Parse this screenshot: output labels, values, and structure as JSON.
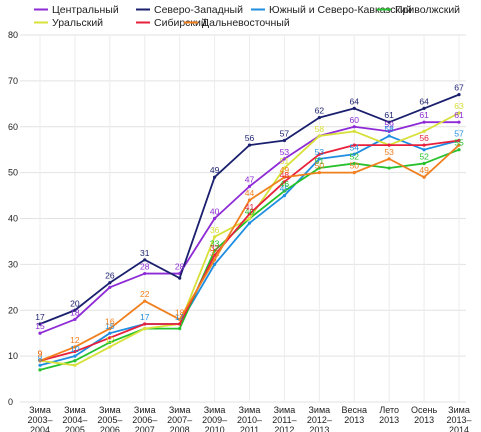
{
  "chart_data": {
    "type": "line",
    "x": [
      "Зима 2003–2004",
      "Зима 2004–2005",
      "Зима 2005–2006",
      "Зима 2006–2007",
      "Зима 2007–2008",
      "Зима 2009–2010",
      "Зима 2010–2011",
      "Зима 2011–2012",
      "Зима 2012–2013",
      "Весна 2013",
      "Лето 2013",
      "Осень 2013",
      "Зима 2013–2014"
    ],
    "x_ticks": [
      [
        "Зима",
        "2003–",
        "2004"
      ],
      [
        "Зима",
        "2004–",
        "2005"
      ],
      [
        "Зима",
        "2005–",
        "2006"
      ],
      [
        "Зима",
        "2006–",
        "2007"
      ],
      [
        "Зима",
        "2007–",
        "2008"
      ],
      [
        "Зима",
        "2009–",
        "2010"
      ],
      [
        "Зима",
        "2010–",
        "2011"
      ],
      [
        "Зима",
        "2011–",
        "2012"
      ],
      [
        "Зима",
        "2012–",
        "2013"
      ],
      [
        "Весна",
        "2013"
      ],
      [
        "Лето",
        "2013"
      ],
      [
        "Осень",
        "2013"
      ],
      [
        "Зима",
        "2013–",
        "2014"
      ]
    ],
    "ylim": [
      0,
      80
    ],
    "y_ticks": [
      0,
      10,
      20,
      30,
      40,
      50,
      60,
      70,
      80
    ],
    "grid": true,
    "legend_position": "top",
    "series": [
      {
        "name": "Центральный",
        "color": "#8e2bd6",
        "values": [
          15,
          18,
          25,
          28,
          28,
          40,
          47,
          53,
          58,
          60,
          59,
          61,
          61
        ],
        "labels": [
          true,
          true,
          false,
          true,
          true,
          true,
          true,
          true,
          false,
          true,
          true,
          true,
          true
        ]
      },
      {
        "name": "Северо-Западный",
        "color": "#1a1f6e",
        "values": [
          17,
          20,
          26,
          31,
          27,
          49,
          56,
          57,
          62,
          64,
          61,
          64,
          67
        ],
        "labels": [
          true,
          true,
          true,
          true,
          false,
          true,
          true,
          true,
          true,
          true,
          true,
          true,
          true
        ]
      },
      {
        "name": "Южный и Северо-Кавказский",
        "color": "#1f8ee0",
        "values": [
          8,
          10,
          15,
          17,
          17,
          30,
          39,
          45,
          53,
          54,
          58,
          55,
          57
        ],
        "labels": [
          true,
          true,
          true,
          true,
          true,
          false,
          false,
          true,
          true,
          true,
          true,
          false,
          true
        ]
      },
      {
        "name": "Приволжский",
        "color": "#26c12c",
        "values": [
          7,
          9,
          13,
          16,
          16,
          33,
          40,
          46,
          51,
          52,
          51,
          52,
          55
        ],
        "labels": [
          false,
          false,
          false,
          false,
          false,
          true,
          true,
          true,
          true,
          true,
          false,
          true,
          true
        ]
      },
      {
        "name": "Уральский",
        "color": "#d8e03a",
        "values": [
          9,
          8,
          12,
          16,
          17,
          36,
          40,
          51,
          58,
          59,
          56,
          59,
          63
        ],
        "labels": [
          true,
          false,
          true,
          false,
          false,
          true,
          false,
          true,
          true,
          false,
          false,
          false,
          true
        ]
      },
      {
        "name": "Сибирский",
        "color": "#e8203c",
        "values": [
          9,
          11,
          14,
          17,
          17,
          32,
          41,
          48,
          54,
          56,
          56,
          56,
          57
        ],
        "labels": [
          true,
          false,
          false,
          false,
          false,
          true,
          true,
          true,
          false,
          false,
          false,
          true,
          false
        ]
      },
      {
        "name": "Дальневосточный",
        "color": "#f07f1e",
        "values": [
          9,
          12,
          16,
          22,
          18,
          31,
          44,
          49,
          50,
          50,
          53,
          49,
          56
        ],
        "labels": [
          true,
          true,
          true,
          true,
          true,
          true,
          true,
          true,
          true,
          true,
          true,
          true,
          false
        ]
      }
    ]
  }
}
